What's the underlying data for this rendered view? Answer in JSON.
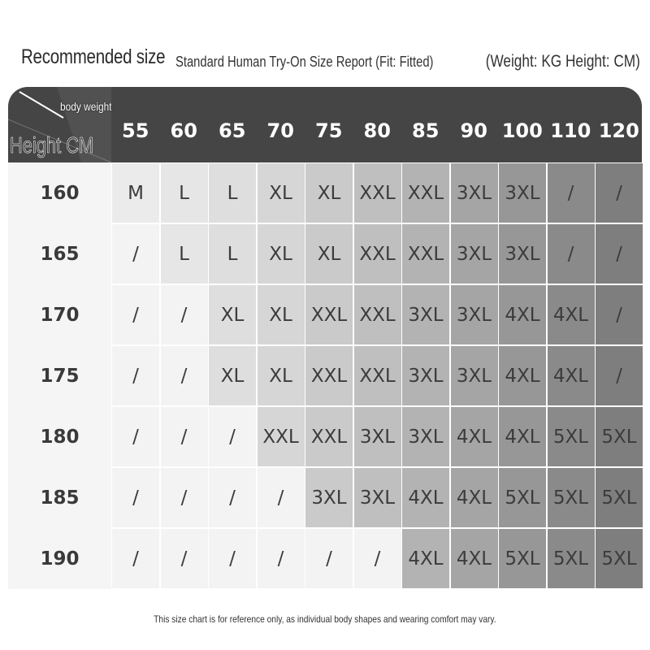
{
  "title": "Recommended size",
  "subtitle": "Standard Human Try-On Size Report (Fit: Fitted)",
  "units": "(Weight: KG Height: CM)",
  "corner": {
    "weight_label": "body weight",
    "height_label": "Height CM"
  },
  "weights": [
    "55",
    "60",
    "65",
    "70",
    "75",
    "80",
    "85",
    "90",
    "100",
    "110",
    "120"
  ],
  "rows": [
    {
      "height": "160",
      "sizes": [
        "M",
        "L",
        "L",
        "XL",
        "XL",
        "XXL",
        "XXL",
        "3XL",
        "3XL",
        "/",
        "/"
      ]
    },
    {
      "height": "165",
      "sizes": [
        "/",
        "L",
        "L",
        "XL",
        "XL",
        "XXL",
        "XXL",
        "3XL",
        "3XL",
        "/",
        "/"
      ]
    },
    {
      "height": "170",
      "sizes": [
        "/",
        "/",
        "XL",
        "XL",
        "XXL",
        "XXL",
        "3XL",
        "3XL",
        "4XL",
        "4XL",
        "/"
      ]
    },
    {
      "height": "175",
      "sizes": [
        "/",
        "/",
        "XL",
        "XL",
        "XXL",
        "XXL",
        "3XL",
        "3XL",
        "4XL",
        "4XL",
        "/"
      ]
    },
    {
      "height": "180",
      "sizes": [
        "/",
        "/",
        "/",
        "XXL",
        "XXL",
        "3XL",
        "3XL",
        "4XL",
        "4XL",
        "5XL",
        "5XL"
      ]
    },
    {
      "height": "185",
      "sizes": [
        "/",
        "/",
        "/",
        "/",
        "3XL",
        "3XL",
        "4XL",
        "4XL",
        "5XL",
        "5XL",
        "5XL"
      ]
    },
    {
      "height": "190",
      "sizes": [
        "/",
        "/",
        "/",
        "/",
        "/",
        "/",
        "4XL",
        "4XL",
        "5XL",
        "5XL",
        "5XL"
      ]
    }
  ],
  "note": "This size chart is for reference only, as individual body shapes and wearing comfort may vary.",
  "colors": {
    "header_bg": "#454545",
    "empty_cell": "#f3f3f3",
    "column_shades": [
      "#ebebeb",
      "#e6e6e6",
      "#dedede",
      "#d6d6d6",
      "#cacaca",
      "#bfbfbf",
      "#b3b3b3",
      "#a5a5a5",
      "#979797",
      "#8a8a8a",
      "#7e7e7e"
    ]
  }
}
